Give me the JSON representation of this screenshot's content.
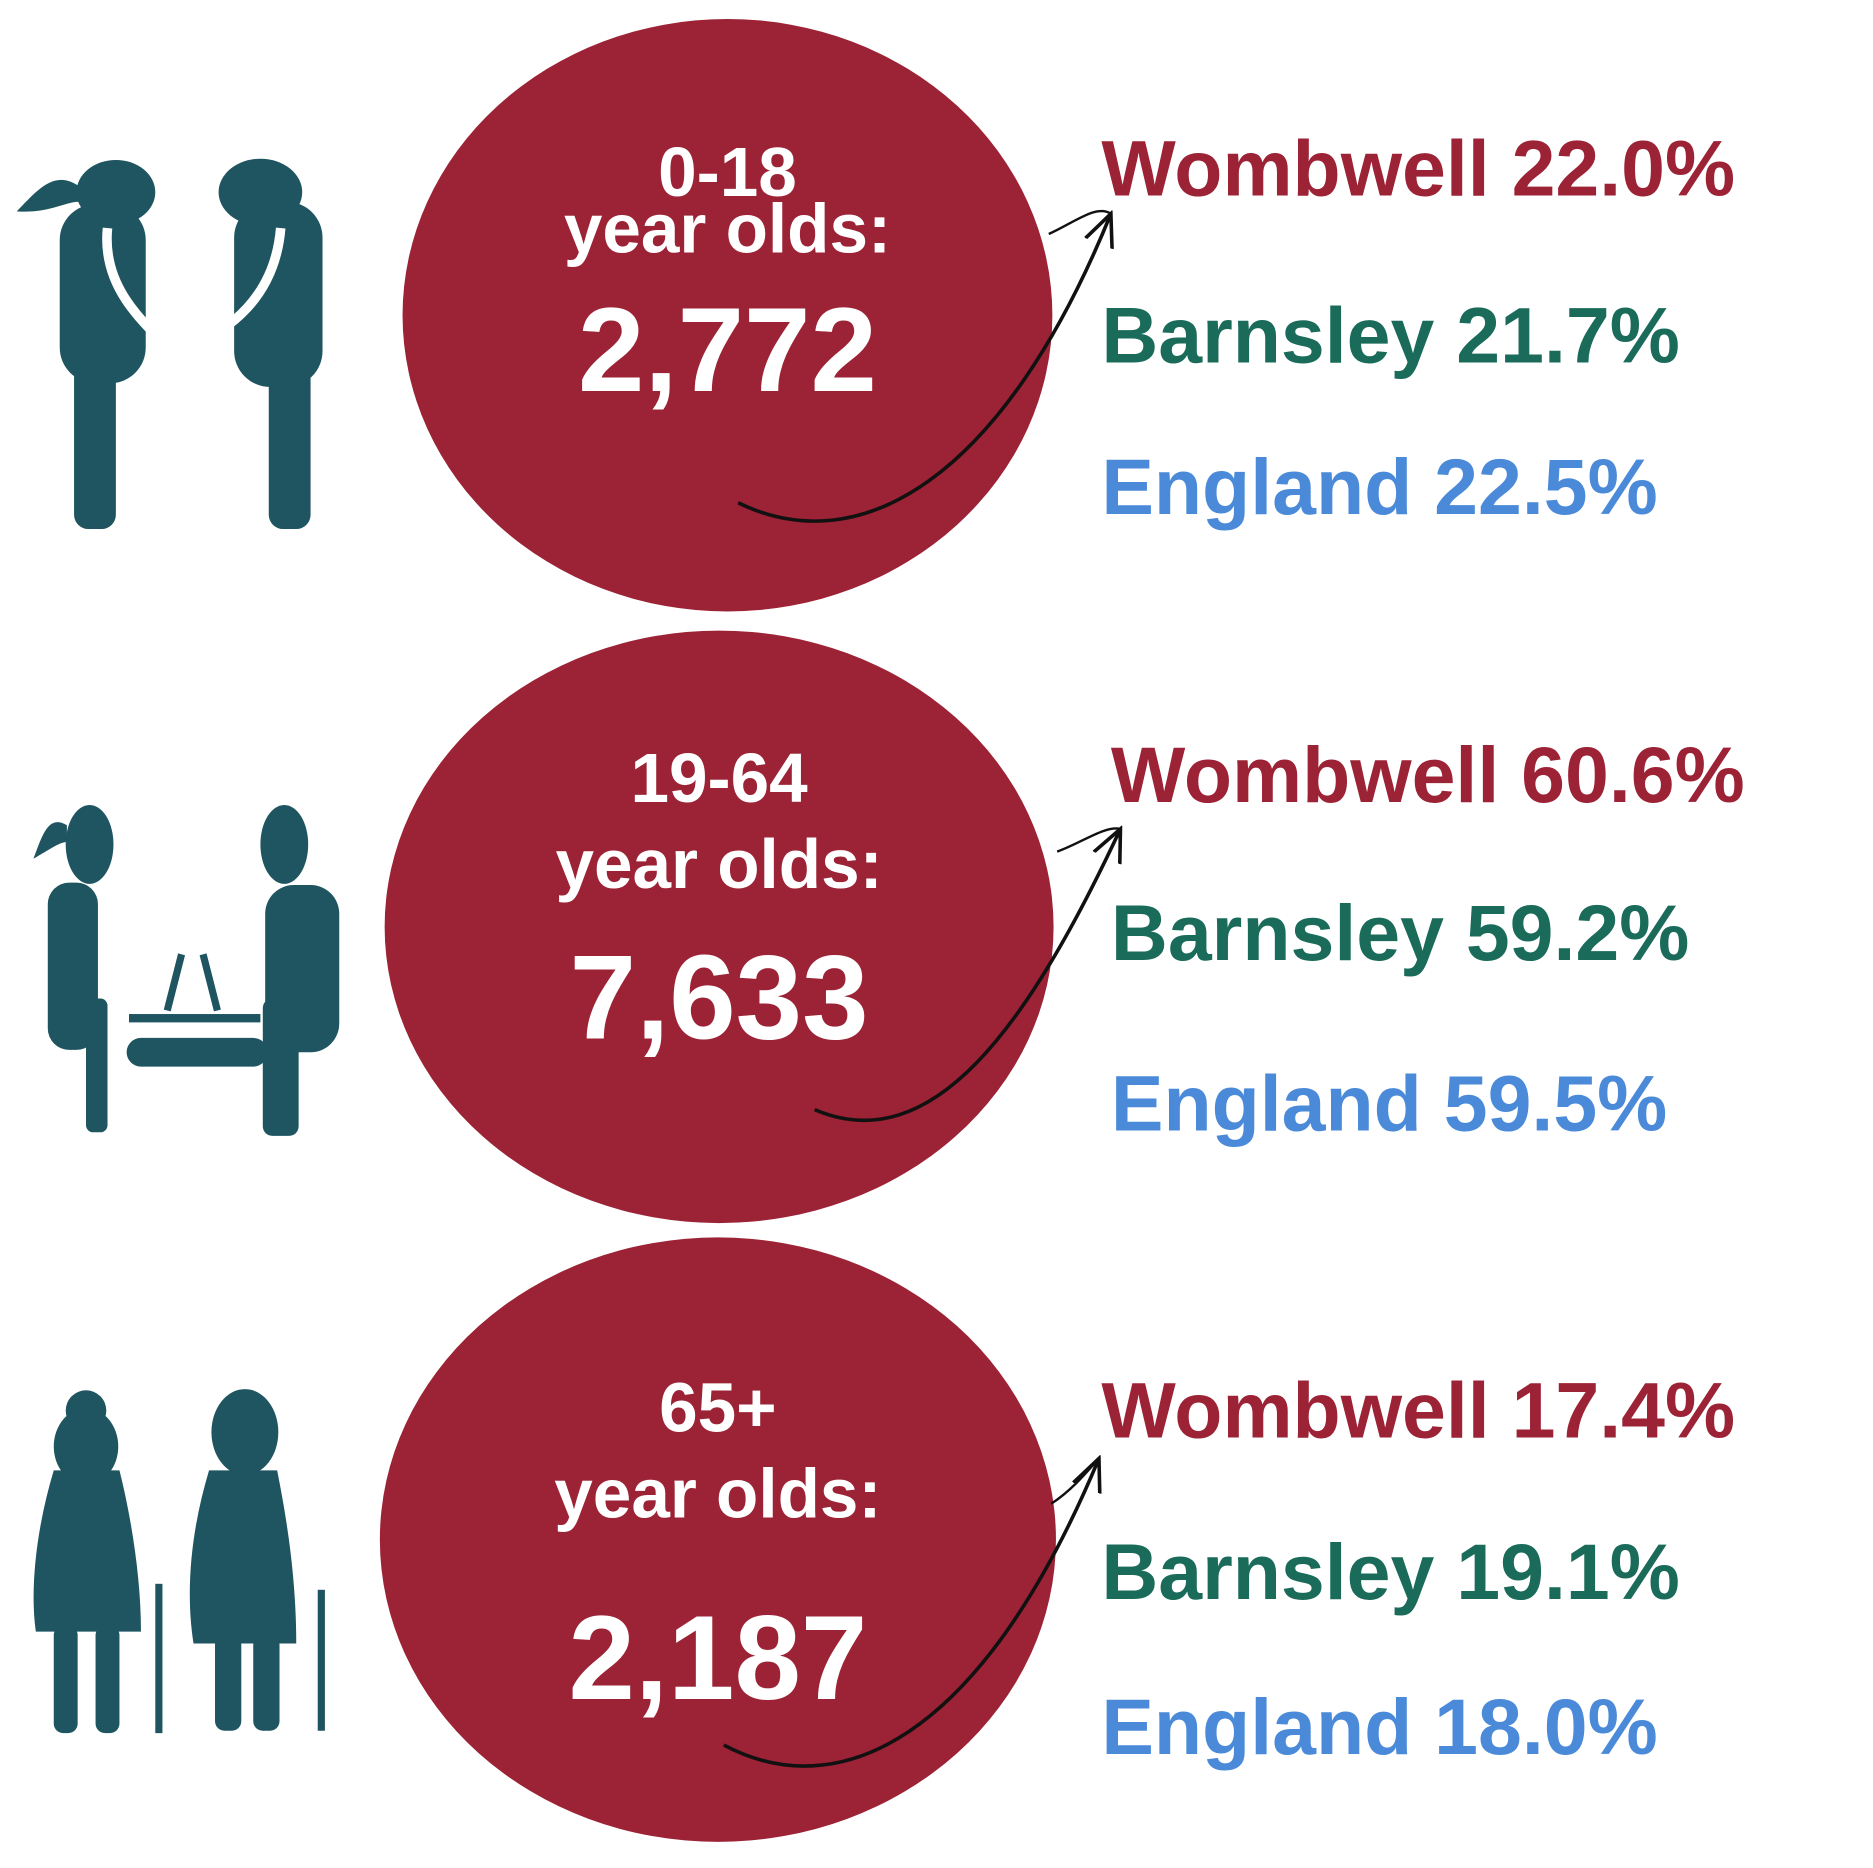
{
  "groups": [
    {
      "age": "0-18",
      "unit": "year olds:",
      "count": "2,772",
      "stats": [
        {
          "name": "Wombwell",
          "value": "22.0%"
        },
        {
          "name": "Barnsley",
          "value": "21.7%"
        },
        {
          "name": "England",
          "value": "22.5%"
        }
      ]
    },
    {
      "age": "19-64",
      "unit": "year olds:",
      "count": "7,633",
      "stats": [
        {
          "name": "Wombwell",
          "value": "60.6%"
        },
        {
          "name": "Barnsley",
          "value": "59.2%"
        },
        {
          "name": "England",
          "value": "59.5%"
        }
      ]
    },
    {
      "age": "65+",
      "unit": "year olds:",
      "count": "2,187",
      "stats": [
        {
          "name": "Wombwell",
          "value": "17.4%"
        },
        {
          "name": "Barnsley",
          "value": "19.1%"
        },
        {
          "name": "England",
          "value": "18.0%"
        }
      ]
    }
  ]
}
